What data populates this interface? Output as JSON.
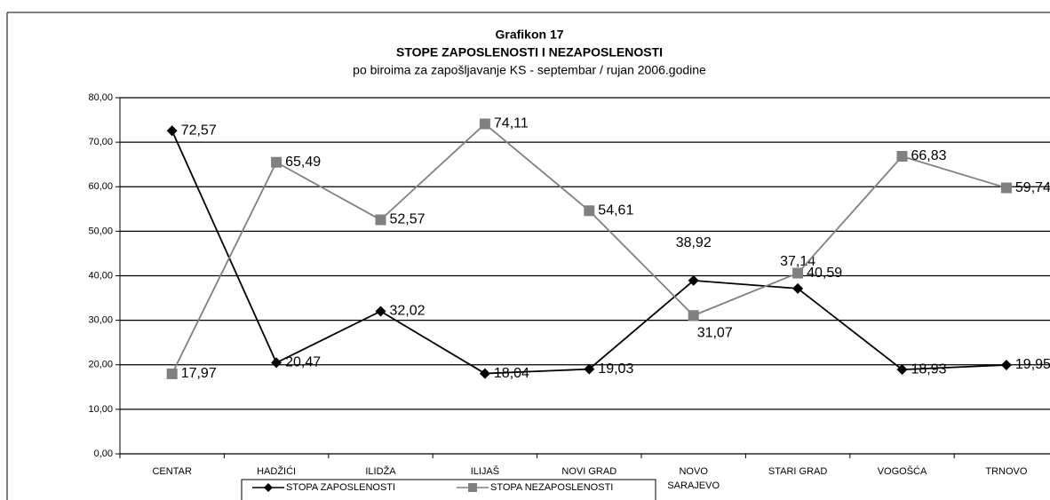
{
  "chart_data": {
    "type": "line",
    "title": "Grafikon 17",
    "subtitle": "STOPE ZAPOSLENOSTI I NEZAPOSLENOSTI",
    "subtitle2": "po biroima za zapošljavanje KS - septembar / rujan 2006.godine",
    "categories": [
      "CENTAR",
      "HADŽIĆI",
      "ILIDŽA",
      "ILIJAŠ",
      "NOVI GRAD",
      "NOVO SARAJEVO",
      "STARI GRAD",
      "VOGOŠĆA",
      "TRNOVO"
    ],
    "series": [
      {
        "name": "STOPA ZAPOSLENOSTI",
        "color": "#000000",
        "marker": "diamond",
        "values": [
          72.57,
          20.47,
          32.02,
          18.04,
          19.03,
          38.92,
          37.14,
          18.93,
          19.95
        ],
        "value_labels": [
          "72,57",
          "20,47",
          "32,02",
          "18,04",
          "19,03",
          "38,92",
          "37,14",
          "18,93",
          "19,95"
        ]
      },
      {
        "name": "STOPA NEZAPOSLENOSTI",
        "color": "#808080",
        "marker": "square",
        "values": [
          17.97,
          65.49,
          52.57,
          74.11,
          54.61,
          31.07,
          40.59,
          66.83,
          59.74
        ],
        "value_labels": [
          "17,97",
          "65,49",
          "52,57",
          "74,11",
          "54,61",
          "31,07",
          "40,59",
          "66,83",
          "59,74"
        ]
      }
    ],
    "ylim": [
      0,
      80
    ],
    "yticks": [
      {
        "value": 0,
        "label": "0,00"
      },
      {
        "value": 10,
        "label": "10,00"
      },
      {
        "value": 20,
        "label": "20,00"
      },
      {
        "value": 30,
        "label": "30,00"
      },
      {
        "value": 40,
        "label": "40,00"
      },
      {
        "value": 50,
        "label": "50,00"
      },
      {
        "value": 60,
        "label": "60,00"
      },
      {
        "value": 70,
        "label": "70,00"
      },
      {
        "value": 80,
        "label": "80,00"
      }
    ],
    "grid": true
  }
}
